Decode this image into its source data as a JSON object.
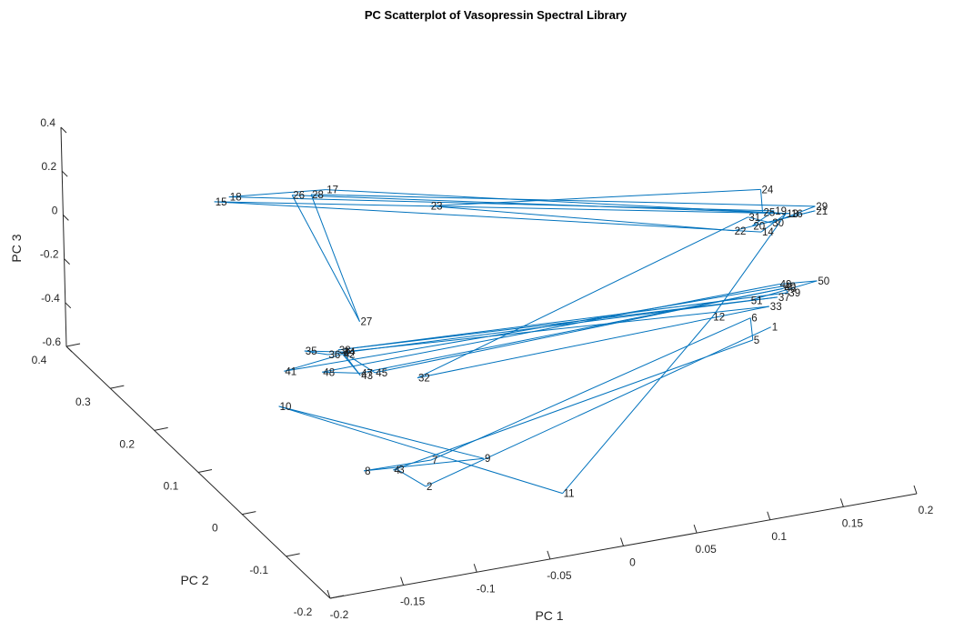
{
  "chart_data": {
    "type": "scatter",
    "title": "PC Scatterplot of Vasopressin Spectral Library",
    "xlabel": "PC 1",
    "ylabel": "PC 2",
    "zlabel": "PC 3",
    "line_color": "#0072BD",
    "x_ticks": [
      "-0.2",
      "-0.15",
      "-0.1",
      "-0.05",
      "0",
      "0.05",
      "0.1",
      "0.15",
      "0.2"
    ],
    "y_ticks": [
      "-0.2",
      "-0.1",
      "0",
      "0.1",
      "0.2",
      "0.3",
      "0.4"
    ],
    "z_ticks": [
      "0.4",
      "0.2",
      "0",
      "-0.2",
      "-0.4",
      "-0.6"
    ],
    "points": [
      {
        "label": "1",
        "x": 0.165,
        "y": 0.01,
        "z": -0.2
      },
      {
        "label": "2",
        "x": -0.11,
        "y": -0.12,
        "z": -0.35
      },
      {
        "label": "3",
        "x": -0.12,
        "y": -0.09,
        "z": -0.32
      },
      {
        "label": "4",
        "x": -0.12,
        "y": -0.08,
        "z": -0.34
      },
      {
        "label": "5",
        "x": 0.17,
        "y": 0.07,
        "z": -0.38
      },
      {
        "label": "6",
        "x": 0.16,
        "y": 0.04,
        "z": -0.21
      },
      {
        "label": "7",
        "x": -0.1,
        "y": -0.1,
        "z": -0.28
      },
      {
        "label": "8",
        "x": -0.14,
        "y": -0.08,
        "z": -0.32
      },
      {
        "label": "9",
        "x": -0.07,
        "y": -0.12,
        "z": -0.27
      },
      {
        "label": "10",
        "x": -0.15,
        "y": 0.08,
        "z": -0.32
      },
      {
        "label": "11",
        "x": -0.02,
        "y": -0.13,
        "z": -0.47
      },
      {
        "label": "12",
        "x": 0.14,
        "y": 0.06,
        "z": -0.22
      },
      {
        "label": "13",
        "x": 0.18,
        "y": 0.02,
        "z": 0.28
      },
      {
        "label": "14",
        "x": 0.16,
        "y": 0.01,
        "z": 0.24
      },
      {
        "label": "15",
        "x": -0.1,
        "y": 0.39,
        "z": -0.04
      },
      {
        "label": "16",
        "x": 0.18,
        "y": 0.01,
        "z": 0.3
      },
      {
        "label": "17",
        "x": -0.03,
        "y": 0.37,
        "z": -0.03
      },
      {
        "label": "18",
        "x": -0.09,
        "y": 0.39,
        "z": -0.03
      },
      {
        "label": "19",
        "x": 0.175,
        "y": 0.03,
        "z": 0.28
      },
      {
        "label": "20",
        "x": 0.16,
        "y": 0.03,
        "z": 0.23
      },
      {
        "label": "21",
        "x": 0.2,
        "y": 0.02,
        "z": 0.27
      },
      {
        "label": "22",
        "x": 0.15,
        "y": 0.04,
        "z": 0.2
      },
      {
        "label": "23",
        "x": 0.02,
        "y": 0.3,
        "z": -0.03
      },
      {
        "label": "24",
        "x": 0.175,
        "y": 0.06,
        "z": 0.32
      },
      {
        "label": "25",
        "x": 0.17,
        "y": 0.04,
        "z": 0.26
      },
      {
        "label": "26",
        "x": -0.05,
        "y": 0.38,
        "z": -0.05
      },
      {
        "label": "27",
        "x": -0.05,
        "y": 0.23,
        "z": -0.34
      },
      {
        "label": "28",
        "x": -0.04,
        "y": 0.37,
        "z": -0.04
      },
      {
        "label": "29",
        "x": 0.2,
        "y": 0.02,
        "z": 0.29
      },
      {
        "label": "30",
        "x": 0.17,
        "y": 0.02,
        "z": 0.25
      },
      {
        "label": "31",
        "x": 0.16,
        "y": 0.04,
        "z": 0.25
      },
      {
        "label": "32",
        "x": -0.07,
        "y": 0.03,
        "z": -0.19
      },
      {
        "label": "33",
        "x": 0.17,
        "y": 0.03,
        "z": -0.15
      },
      {
        "label": "34",
        "x": -0.1,
        "y": 0.1,
        "z": -0.17
      },
      {
        "label": "35",
        "x": -0.12,
        "y": 0.12,
        "z": -0.18
      },
      {
        "label": "36",
        "x": -0.11,
        "y": 0.1,
        "z": -0.17
      },
      {
        "label": "37",
        "x": 0.17,
        "y": 0.01,
        "z": -0.07
      },
      {
        "label": "38",
        "x": -0.1,
        "y": 0.11,
        "z": -0.18
      },
      {
        "label": "39",
        "x": 0.18,
        "y": 0.02,
        "z": -0.08
      },
      {
        "label": "40",
        "x": 0.18,
        "y": 0.03,
        "z": -0.07
      },
      {
        "label": "41",
        "x": -0.14,
        "y": 0.1,
        "z": -0.21
      },
      {
        "label": "42",
        "x": -0.1,
        "y": 0.1,
        "z": -0.18
      },
      {
        "label": "43",
        "x": -0.1,
        "y": 0.06,
        "z": -0.2
      },
      {
        "label": "44",
        "x": -0.1,
        "y": 0.1,
        "z": -0.17
      },
      {
        "label": "45",
        "x": -0.09,
        "y": 0.06,
        "z": -0.2
      },
      {
        "label": "46",
        "x": 0.18,
        "y": 0.03,
        "z": -0.08
      },
      {
        "label": "47",
        "x": -0.1,
        "y": 0.06,
        "z": -0.19
      },
      {
        "label": "48",
        "x": -0.12,
        "y": 0.08,
        "z": -0.2
      },
      {
        "label": "49",
        "x": 0.18,
        "y": 0.04,
        "z": -0.08
      },
      {
        "label": "50",
        "x": 0.2,
        "y": 0.02,
        "z": -0.05
      },
      {
        "label": "51",
        "x": 0.16,
        "y": 0.04,
        "z": -0.13
      }
    ]
  }
}
